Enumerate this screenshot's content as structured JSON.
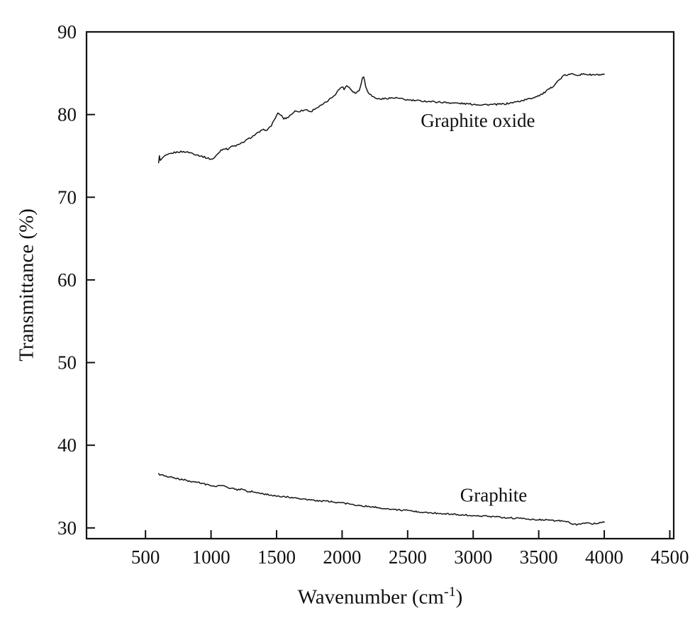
{
  "figure": {
    "background": "#ffffff",
    "line_color": "#151515",
    "frame_color": "#111111"
  },
  "chart_data": {
    "type": "line",
    "title": "",
    "xlabel_prefix": "Wavenumber (cm",
    "xlabel_sup": "-1",
    "xlabel_suffix": ")",
    "ylabel": "Transmittance (%)",
    "xlim": [
      50,
      4530
    ],
    "ylim": [
      28.7,
      90
    ],
    "x_ticks": [
      500,
      1000,
      1500,
      2000,
      2500,
      3000,
      3500,
      4000,
      4500
    ],
    "y_ticks": [
      30,
      40,
      50,
      60,
      70,
      80,
      90
    ],
    "grid": false,
    "legend_position": "inline-annotations",
    "series": [
      {
        "name": "Graphite oxide",
        "label_pos": [
          2600,
          78.5
        ],
        "points": [
          [
            600,
            74.1
          ],
          [
            606,
            75.1
          ],
          [
            612,
            74.4
          ],
          [
            640,
            74.9
          ],
          [
            680,
            75.2
          ],
          [
            720,
            75.4
          ],
          [
            760,
            75.5
          ],
          [
            800,
            75.5
          ],
          [
            840,
            75.4
          ],
          [
            880,
            75.2
          ],
          [
            920,
            75.0
          ],
          [
            960,
            74.8
          ],
          [
            1000,
            74.6
          ],
          [
            1020,
            74.7
          ],
          [
            1050,
            75.2
          ],
          [
            1075,
            75.7
          ],
          [
            1100,
            75.9
          ],
          [
            1125,
            75.8
          ],
          [
            1150,
            76.1
          ],
          [
            1180,
            76.2
          ],
          [
            1220,
            76.4
          ],
          [
            1260,
            76.8
          ],
          [
            1300,
            77.2
          ],
          [
            1340,
            77.6
          ],
          [
            1380,
            78.0
          ],
          [
            1410,
            78.2
          ],
          [
            1430,
            78.1
          ],
          [
            1460,
            78.7
          ],
          [
            1490,
            79.6
          ],
          [
            1510,
            80.1
          ],
          [
            1530,
            80.0
          ],
          [
            1555,
            79.5
          ],
          [
            1580,
            79.6
          ],
          [
            1610,
            80.0
          ],
          [
            1640,
            80.4
          ],
          [
            1670,
            80.4
          ],
          [
            1700,
            80.5
          ],
          [
            1730,
            80.6
          ],
          [
            1760,
            80.3
          ],
          [
            1790,
            80.7
          ],
          [
            1830,
            81.0
          ],
          [
            1870,
            81.4
          ],
          [
            1910,
            81.9
          ],
          [
            1950,
            82.5
          ],
          [
            1980,
            83.1
          ],
          [
            2000,
            83.4
          ],
          [
            2015,
            83.1
          ],
          [
            2035,
            83.5
          ],
          [
            2055,
            83.3
          ],
          [
            2075,
            82.9
          ],
          [
            2100,
            82.6
          ],
          [
            2130,
            82.9
          ],
          [
            2155,
            84.4
          ],
          [
            2165,
            84.6
          ],
          [
            2180,
            83.4
          ],
          [
            2200,
            82.7
          ],
          [
            2230,
            82.2
          ],
          [
            2270,
            81.9
          ],
          [
            2310,
            81.9
          ],
          [
            2360,
            82.0
          ],
          [
            2420,
            82.0
          ],
          [
            2480,
            81.8
          ],
          [
            2550,
            81.7
          ],
          [
            2650,
            81.6
          ],
          [
            2750,
            81.5
          ],
          [
            2850,
            81.4
          ],
          [
            2950,
            81.3
          ],
          [
            3050,
            81.2
          ],
          [
            3150,
            81.2
          ],
          [
            3250,
            81.3
          ],
          [
            3350,
            81.6
          ],
          [
            3450,
            82.0
          ],
          [
            3530,
            82.5
          ],
          [
            3600,
            83.3
          ],
          [
            3650,
            84.1
          ],
          [
            3690,
            84.7
          ],
          [
            3720,
            84.8
          ],
          [
            3760,
            84.9
          ],
          [
            3800,
            84.8
          ],
          [
            3850,
            84.9
          ],
          [
            3900,
            84.8
          ],
          [
            3950,
            84.8
          ],
          [
            4000,
            84.8
          ]
        ]
      },
      {
        "name": "Graphite",
        "label_pos": [
          2900,
          33.2
        ],
        "points": [
          [
            600,
            36.5
          ],
          [
            650,
            36.3
          ],
          [
            700,
            36.1
          ],
          [
            750,
            35.9
          ],
          [
            800,
            35.8
          ],
          [
            850,
            35.6
          ],
          [
            900,
            35.5
          ],
          [
            950,
            35.3
          ],
          [
            1000,
            35.1
          ],
          [
            1040,
            35.0
          ],
          [
            1080,
            35.2
          ],
          [
            1120,
            34.9
          ],
          [
            1160,
            34.8
          ],
          [
            1200,
            34.6
          ],
          [
            1240,
            34.7
          ],
          [
            1280,
            34.4
          ],
          [
            1320,
            34.4
          ],
          [
            1360,
            34.2
          ],
          [
            1400,
            34.1
          ],
          [
            1450,
            34.0
          ],
          [
            1500,
            33.8
          ],
          [
            1550,
            33.8
          ],
          [
            1600,
            33.7
          ],
          [
            1650,
            33.6
          ],
          [
            1700,
            33.5
          ],
          [
            1750,
            33.4
          ],
          [
            1800,
            33.3
          ],
          [
            1900,
            33.2
          ],
          [
            2000,
            33.0
          ],
          [
            2100,
            32.8
          ],
          [
            2200,
            32.6
          ],
          [
            2300,
            32.4
          ],
          [
            2400,
            32.2
          ],
          [
            2500,
            32.1
          ],
          [
            2600,
            31.9
          ],
          [
            2700,
            31.8
          ],
          [
            2800,
            31.7
          ],
          [
            2900,
            31.6
          ],
          [
            3000,
            31.5
          ],
          [
            3100,
            31.4
          ],
          [
            3200,
            31.3
          ],
          [
            3300,
            31.2
          ],
          [
            3400,
            31.1
          ],
          [
            3500,
            31.0
          ],
          [
            3600,
            30.9
          ],
          [
            3700,
            30.8
          ],
          [
            3740,
            30.6
          ],
          [
            3780,
            30.4
          ],
          [
            3820,
            30.5
          ],
          [
            3860,
            30.6
          ],
          [
            3900,
            30.5
          ],
          [
            3950,
            30.6
          ],
          [
            4000,
            30.7
          ]
        ]
      }
    ]
  }
}
